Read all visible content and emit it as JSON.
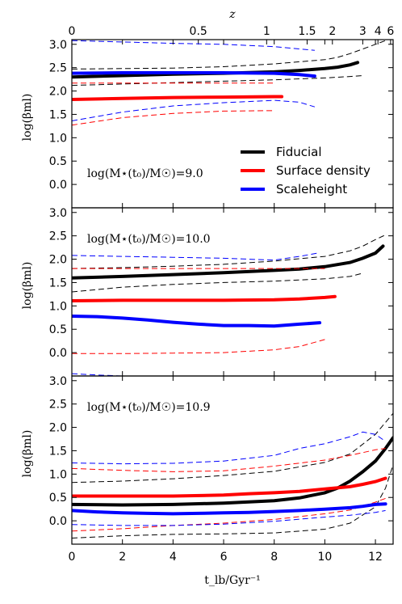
{
  "colors": {
    "fiducial": "#000000",
    "surface_density": "#ff0000",
    "scaleheight": "#0000ff"
  },
  "top_axis": {
    "label": "z",
    "ticks": [
      {
        "label": "0",
        "t": 0
      },
      {
        "label": "0.5",
        "t": 5.0
      },
      {
        "label": "1",
        "t": 7.7
      },
      {
        "label": "1.5",
        "t": 9.3
      },
      {
        "label": "2",
        "t": 10.3
      },
      {
        "label": "3",
        "t": 11.5
      },
      {
        "label": "4",
        "t": 12.1
      },
      {
        "label": "6",
        "t": 12.6
      }
    ]
  },
  "legend": [
    {
      "label": "Fiducial",
      "color": "#000000"
    },
    {
      "label": "Surface density",
      "color": "#ff0000"
    },
    {
      "label": "Scaleheight",
      "color": "#0000ff"
    }
  ],
  "chart_data": [
    {
      "type": "line",
      "annotation": "log(M⋆(t₀)/M☉)=9.0",
      "ylabel": "log(βml)",
      "xlabel": "",
      "xlim": [
        0,
        12.7
      ],
      "ylim": [
        -0.5,
        3.1
      ],
      "yticks": [
        "0.0",
        "0.5",
        "1.0",
        "1.5",
        "2.0",
        "2.5",
        "3.0"
      ],
      "series": [
        {
          "name": "Fiducial",
          "color": "#000000",
          "style": "solid",
          "x": [
            0,
            2,
            4,
            6,
            8,
            9,
            10,
            10.5,
            11,
            11.3
          ],
          "y": [
            2.3,
            2.33,
            2.36,
            2.38,
            2.41,
            2.44,
            2.48,
            2.51,
            2.56,
            2.61
          ]
        },
        {
          "name": "",
          "color": "#000000",
          "style": "dashed",
          "x": [
            0,
            2,
            4,
            6,
            8,
            10,
            10.5,
            11,
            11.5,
            12,
            12.5
          ],
          "y": [
            2.47,
            2.48,
            2.49,
            2.52,
            2.58,
            2.67,
            2.72,
            2.8,
            2.9,
            3.0,
            3.1
          ]
        },
        {
          "name": "",
          "color": "#000000",
          "style": "dashed",
          "x": [
            0,
            2,
            4,
            6,
            8,
            10,
            11,
            11.5
          ],
          "y": [
            2.12,
            2.15,
            2.18,
            2.21,
            2.24,
            2.28,
            2.31,
            2.33
          ]
        },
        {
          "name": "Surface density",
          "color": "#ff0000",
          "style": "solid",
          "x": [
            0,
            2,
            4,
            6,
            8,
            8.3
          ],
          "y": [
            1.82,
            1.84,
            1.86,
            1.87,
            1.88,
            1.88
          ]
        },
        {
          "name": "",
          "color": "#ff0000",
          "style": "dashed",
          "x": [
            0,
            2,
            4,
            6,
            8
          ],
          "y": [
            2.17,
            2.17,
            2.17,
            2.17,
            2.17
          ]
        },
        {
          "name": "",
          "color": "#ff0000",
          "style": "dashed",
          "x": [
            0,
            2,
            4,
            6,
            8
          ],
          "y": [
            1.27,
            1.43,
            1.52,
            1.57,
            1.58
          ]
        },
        {
          "name": "Scaleheight",
          "color": "#0000ff",
          "style": "solid",
          "x": [
            0,
            2,
            4,
            6,
            8,
            9,
            9.6
          ],
          "y": [
            2.38,
            2.39,
            2.39,
            2.39,
            2.38,
            2.35,
            2.32
          ]
        },
        {
          "name": "",
          "color": "#0000ff",
          "style": "dashed",
          "x": [
            0,
            2,
            4,
            6,
            8,
            9.6
          ],
          "y": [
            3.08,
            3.05,
            3.02,
            3.0,
            2.95,
            2.87
          ]
        },
        {
          "name": "",
          "color": "#0000ff",
          "style": "dashed",
          "x": [
            0,
            2,
            4,
            6,
            8,
            9,
            9.6
          ],
          "y": [
            1.36,
            1.55,
            1.68,
            1.75,
            1.8,
            1.76,
            1.66
          ]
        }
      ]
    },
    {
      "type": "line",
      "annotation": "log(M⋆(t₀)/M☉)=10.0",
      "ylabel": "log(βml)",
      "xlabel": "",
      "xlim": [
        0,
        12.7
      ],
      "ylim": [
        -0.5,
        3.1
      ],
      "yticks": [
        "0.0",
        "0.5",
        "1.0",
        "1.5",
        "2.0",
        "2.5",
        "3.0"
      ],
      "series": [
        {
          "name": "Fiducial",
          "color": "#000000",
          "style": "solid",
          "x": [
            0,
            2,
            4,
            6,
            8,
            9,
            10,
            11,
            11.5,
            12,
            12.3
          ],
          "y": [
            1.6,
            1.63,
            1.67,
            1.71,
            1.76,
            1.79,
            1.84,
            1.93,
            2.02,
            2.13,
            2.28
          ]
        },
        {
          "name": "",
          "color": "#000000",
          "style": "dashed",
          "x": [
            0,
            2,
            4,
            6,
            8,
            10,
            11,
            11.5,
            12,
            12.4
          ],
          "y": [
            1.8,
            1.82,
            1.85,
            1.89,
            1.96,
            2.06,
            2.18,
            2.28,
            2.42,
            2.52
          ]
        },
        {
          "name": "",
          "color": "#000000",
          "style": "dashed",
          "x": [
            0,
            2,
            4,
            6,
            8,
            10,
            11,
            11.5
          ],
          "y": [
            1.3,
            1.4,
            1.46,
            1.5,
            1.53,
            1.58,
            1.63,
            1.7
          ]
        },
        {
          "name": "Surface density",
          "color": "#ff0000",
          "style": "solid",
          "x": [
            0,
            2,
            4,
            6,
            8,
            9,
            10,
            10.4
          ],
          "y": [
            1.11,
            1.12,
            1.12,
            1.12,
            1.13,
            1.15,
            1.18,
            1.2
          ]
        },
        {
          "name": "",
          "color": "#ff0000",
          "style": "dashed",
          "x": [
            0,
            2,
            4,
            6,
            8,
            10
          ],
          "y": [
            1.8,
            1.8,
            1.8,
            1.8,
            1.8,
            1.8
          ]
        },
        {
          "name": "",
          "color": "#ff0000",
          "style": "dashed",
          "x": [
            0,
            2,
            4,
            6,
            8,
            9,
            10
          ],
          "y": [
            -0.02,
            -0.02,
            -0.01,
            0.0,
            0.06,
            0.13,
            0.28
          ]
        },
        {
          "name": "Scaleheight",
          "color": "#0000ff",
          "style": "solid",
          "x": [
            0,
            1,
            2,
            3,
            4,
            5,
            6,
            7,
            8,
            9,
            9.8
          ],
          "y": [
            0.78,
            0.77,
            0.74,
            0.7,
            0.65,
            0.61,
            0.58,
            0.58,
            0.57,
            0.61,
            0.64
          ]
        },
        {
          "name": "",
          "color": "#0000ff",
          "style": "dashed",
          "x": [
            0,
            2,
            4,
            6,
            8,
            9,
            9.8
          ],
          "y": [
            2.08,
            2.06,
            2.04,
            2.02,
            1.98,
            2.06,
            2.14
          ]
        },
        {
          "name": "",
          "color": "#0000ff",
          "style": "dashed",
          "x": [
            0,
            1,
            2,
            3
          ],
          "y": [
            -0.45,
            -0.48,
            -0.5,
            -0.52
          ]
        }
      ]
    },
    {
      "type": "line",
      "annotation": "log(M⋆(t₀)/M☉)=10.9",
      "ylabel": "log(βml)",
      "xlabel": "t_lb/Gyr⁻¹",
      "xlim": [
        0,
        12.7
      ],
      "ylim": [
        -0.5,
        3.1
      ],
      "xticks": [
        "0",
        "2",
        "4",
        "6",
        "8",
        "10",
        "12"
      ],
      "yticks": [
        "0.0",
        "0.5",
        "1.0",
        "1.5",
        "2.0",
        "2.5",
        "3.0"
      ],
      "series": [
        {
          "name": "Fiducial",
          "color": "#000000",
          "style": "solid",
          "x": [
            0,
            2,
            4,
            6,
            8,
            9,
            10,
            10.5,
            11,
            11.5,
            12,
            12.4,
            12.7
          ],
          "y": [
            0.35,
            0.34,
            0.35,
            0.38,
            0.43,
            0.49,
            0.6,
            0.7,
            0.85,
            1.05,
            1.28,
            1.55,
            1.78
          ]
        },
        {
          "name": "",
          "color": "#000000",
          "style": "dashed",
          "x": [
            0,
            2,
            4,
            6,
            8,
            10,
            11,
            12,
            12.7
          ],
          "y": [
            0.82,
            0.85,
            0.9,
            0.97,
            1.06,
            1.25,
            1.43,
            1.85,
            2.3
          ]
        },
        {
          "name": "",
          "color": "#000000",
          "style": "dashed",
          "x": [
            0,
            2,
            4,
            6,
            8,
            10,
            11,
            12,
            12.4,
            12.7
          ],
          "y": [
            -0.37,
            -0.32,
            -0.29,
            -0.28,
            -0.26,
            -0.18,
            -0.05,
            0.3,
            0.7,
            1.2
          ]
        },
        {
          "name": "Surface density",
          "color": "#ff0000",
          "style": "solid",
          "x": [
            0,
            2,
            4,
            6,
            7,
            8,
            9,
            10,
            11,
            11.5,
            12,
            12.4
          ],
          "y": [
            0.53,
            0.53,
            0.53,
            0.55,
            0.58,
            0.6,
            0.63,
            0.68,
            0.73,
            0.78,
            0.84,
            0.91
          ]
        },
        {
          "name": "",
          "color": "#ff0000",
          "style": "dashed",
          "x": [
            0,
            2,
            4,
            6,
            8,
            10,
            11,
            12,
            12.4
          ],
          "y": [
            1.12,
            1.08,
            1.05,
            1.07,
            1.17,
            1.3,
            1.4,
            1.52,
            1.55
          ]
        },
        {
          "name": "",
          "color": "#ff0000",
          "style": "dashed",
          "x": [
            0,
            2,
            4,
            6,
            8,
            10,
            11,
            12,
            12.4
          ],
          "y": [
            -0.22,
            -0.17,
            -0.1,
            -0.05,
            0.03,
            0.15,
            0.23,
            0.4,
            0.48
          ]
        },
        {
          "name": "Scaleheight",
          "color": "#0000ff",
          "style": "solid",
          "x": [
            0,
            1,
            2,
            3,
            4,
            5,
            6,
            7,
            8,
            9,
            10,
            11,
            11.5,
            12,
            12.4
          ],
          "y": [
            0.22,
            0.19,
            0.17,
            0.16,
            0.15,
            0.16,
            0.17,
            0.18,
            0.2,
            0.22,
            0.25,
            0.28,
            0.31,
            0.35,
            0.36
          ]
        },
        {
          "name": "",
          "color": "#0000ff",
          "style": "dashed",
          "x": [
            0,
            2,
            4,
            6,
            8,
            9,
            10,
            11,
            11.5,
            12,
            12.4
          ],
          "y": [
            1.24,
            1.22,
            1.23,
            1.28,
            1.4,
            1.55,
            1.65,
            1.8,
            1.9,
            1.85,
            1.7
          ]
        },
        {
          "name": "",
          "color": "#0000ff",
          "style": "dashed",
          "x": [
            0,
            2,
            4,
            6,
            8,
            10,
            11,
            12,
            12.4
          ],
          "y": [
            -0.08,
            -0.1,
            -0.1,
            -0.07,
            -0.01,
            0.08,
            0.12,
            0.18,
            0.22
          ]
        }
      ]
    }
  ]
}
